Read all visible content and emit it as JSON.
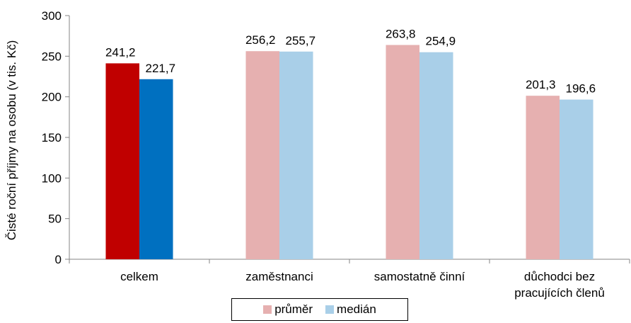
{
  "chart_data": {
    "type": "bar",
    "ylabel": "Čisté roční příjmy na osobu (v tis. Kč)",
    "ylim": [
      0,
      300
    ],
    "yticks": [
      0,
      50,
      100,
      150,
      200,
      250,
      300
    ],
    "categories": [
      [
        "celkem"
      ],
      [
        "zaměstnanci"
      ],
      [
        "samostatně činní"
      ],
      [
        "důchodci bez",
        "pracujících členů"
      ]
    ],
    "series": [
      {
        "name": "průměr",
        "values": [
          241.2,
          256.2,
          263.8,
          201.3
        ],
        "labels": [
          "241,2",
          "256,2",
          "263,8",
          "201,3"
        ],
        "colors": [
          "#c00000",
          "#e6b0b0",
          "#e6b0b0",
          "#e6b0b0"
        ],
        "legend_color": "#e6b0b0"
      },
      {
        "name": "medián",
        "values": [
          221.7,
          255.7,
          254.9,
          196.6
        ],
        "labels": [
          "221,7",
          "255,7",
          "254,9",
          "196,6"
        ],
        "colors": [
          "#0070c0",
          "#a9cfe8",
          "#a9cfe8",
          "#a9cfe8"
        ],
        "legend_color": "#a9cfe8"
      }
    ],
    "grid": false,
    "legend_position": "bottom"
  }
}
